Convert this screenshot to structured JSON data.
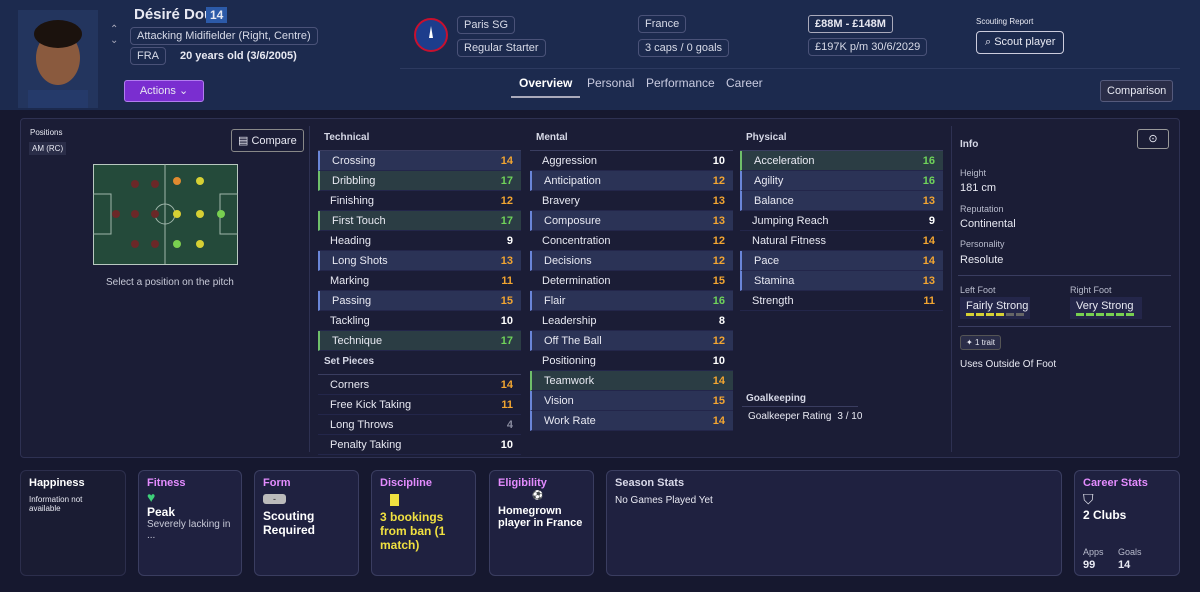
{
  "header": {
    "name": "Désiré Doué",
    "number": 14,
    "position": "Attacking Midifielder (Right, Centre)",
    "nationality": "FRA",
    "age": "20 years old (3/6/2005)",
    "actions": "Actions",
    "club": "Paris SG",
    "status": "Regular Starter",
    "country": "France",
    "caps": "3 caps / 0 goals",
    "value": "£88M - £148M",
    "contract": "£197K p/m 30/6/2029",
    "scouting_label": "Scouting Report",
    "scout_button": "Scout player"
  },
  "tabs": [
    "Overview",
    "Personal",
    "Performance",
    "Career"
  ],
  "comparison": "Comparison",
  "positions": {
    "title": "Positions",
    "current": "AM (RC)",
    "compare": "Compare",
    "hint": "Select a position on the pitch"
  },
  "attributes": {
    "technical": {
      "title": "Technical",
      "items": [
        {
          "name": "Crossing",
          "value": 14,
          "highlight": "blue"
        },
        {
          "name": "Dribbling",
          "value": 17,
          "highlight": "green"
        },
        {
          "name": "Finishing",
          "value": 12
        },
        {
          "name": "First Touch",
          "value": 17,
          "highlight": "green"
        },
        {
          "name": "Heading",
          "value": 9
        },
        {
          "name": "Long Shots",
          "value": 13,
          "highlight": "blue"
        },
        {
          "name": "Marking",
          "value": 11
        },
        {
          "name": "Passing",
          "value": 15,
          "highlight": "blue"
        },
        {
          "name": "Tackling",
          "value": 10
        },
        {
          "name": "Technique",
          "value": 17,
          "highlight": "green"
        }
      ]
    },
    "set_pieces": {
      "title": "Set Pieces",
      "items": [
        {
          "name": "Corners",
          "value": 14
        },
        {
          "name": "Free Kick Taking",
          "value": 11
        },
        {
          "name": "Long Throws",
          "value": 4
        },
        {
          "name": "Penalty Taking",
          "value": 10
        }
      ]
    },
    "mental": {
      "title": "Mental",
      "items": [
        {
          "name": "Aggression",
          "value": 10
        },
        {
          "name": "Anticipation",
          "value": 12,
          "highlight": "blue"
        },
        {
          "name": "Bravery",
          "value": 13
        },
        {
          "name": "Composure",
          "value": 13,
          "highlight": "blue"
        },
        {
          "name": "Concentration",
          "value": 12
        },
        {
          "name": "Decisions",
          "value": 12,
          "highlight": "blue"
        },
        {
          "name": "Determination",
          "value": 15
        },
        {
          "name": "Flair",
          "value": 16,
          "highlight": "blue"
        },
        {
          "name": "Leadership",
          "value": 8
        },
        {
          "name": "Off The Ball",
          "value": 12,
          "highlight": "blue"
        },
        {
          "name": "Positioning",
          "value": 10
        },
        {
          "name": "Teamwork",
          "value": 14,
          "highlight": "green"
        },
        {
          "name": "Vision",
          "value": 15,
          "highlight": "blue"
        },
        {
          "name": "Work Rate",
          "value": 14,
          "highlight": "blue"
        }
      ]
    },
    "physical": {
      "title": "Physical",
      "items": [
        {
          "name": "Acceleration",
          "value": 16,
          "highlight": "green"
        },
        {
          "name": "Agility",
          "value": 16,
          "highlight": "blue"
        },
        {
          "name": "Balance",
          "value": 13,
          "highlight": "blue"
        },
        {
          "name": "Jumping Reach",
          "value": 9
        },
        {
          "name": "Natural Fitness",
          "value": 14
        },
        {
          "name": "Pace",
          "value": 14,
          "highlight": "blue"
        },
        {
          "name": "Stamina",
          "value": 13,
          "highlight": "blue"
        },
        {
          "name": "Strength",
          "value": 11
        }
      ]
    },
    "goalkeeping": {
      "title": "Goalkeeping",
      "label": "Goalkeeper Rating",
      "value": "3 / 10"
    }
  },
  "info": {
    "title": "Info",
    "height_label": "Height",
    "height": "181 cm",
    "reputation_label": "Reputation",
    "reputation": "Continental",
    "personality_label": "Personality",
    "personality": "Resolute",
    "left_foot_label": "Left Foot",
    "left_foot": "Fairly Strong",
    "right_foot_label": "Right Foot",
    "right_foot": "Very Strong",
    "traits_count": "1 trait",
    "trait": "Uses Outside Of Foot"
  },
  "cards": {
    "happiness": {
      "title": "Happiness",
      "text": "Information not available"
    },
    "fitness": {
      "title": "Fitness",
      "status": "Peak",
      "detail": "Severely lacking in ..."
    },
    "form": {
      "title": "Form",
      "badge": "-",
      "status": "Scouting Required"
    },
    "discipline": {
      "title": "Discipline",
      "status": "3 bookings from ban (1 match)"
    },
    "eligibility": {
      "title": "Eligibility",
      "status": "Homegrown player in France"
    },
    "season": {
      "title": "Season Stats",
      "text": "No Games Played Yet"
    },
    "career": {
      "title": "Career Stats",
      "clubs": "2 Clubs",
      "apps_label": "Apps",
      "apps": 99,
      "goals_label": "Goals",
      "goals": 14
    }
  }
}
